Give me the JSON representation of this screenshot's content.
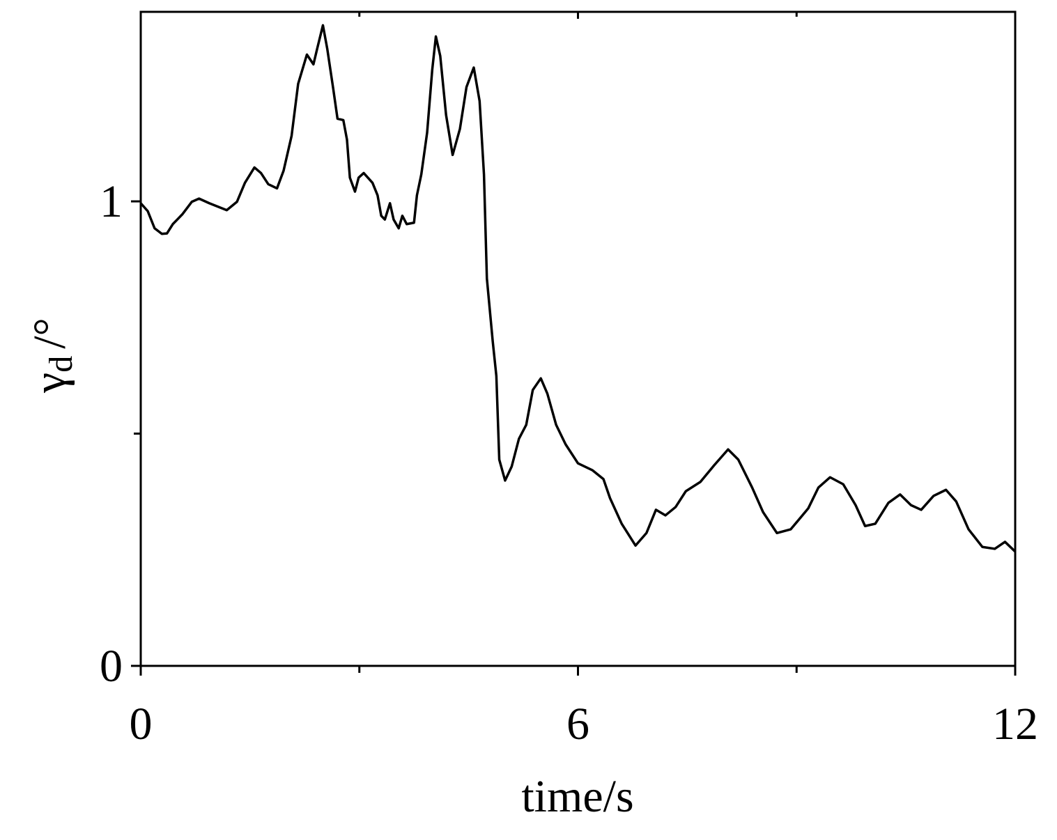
{
  "chart_data": {
    "type": "line",
    "xlabel": "time/s",
    "ylabel": [
      "γ",
      "d",
      "/°"
    ],
    "xlim": [
      0,
      12
    ],
    "xticks": [
      0,
      6,
      12
    ],
    "xminorticks": [
      3,
      9
    ],
    "ylim": [
      0,
      1.408
    ],
    "yticks": [
      0,
      1
    ],
    "yminorticks": [
      0.5
    ],
    "grid": false,
    "series": [
      {
        "color": "#000000",
        "x": [
          0,
          0.096,
          0.19,
          0.29,
          0.36,
          0.44,
          0.57,
          0.7,
          0.8,
          0.94,
          1.18,
          1.32,
          1.43,
          1.56,
          1.65,
          1.75,
          1.87,
          1.96,
          2.07,
          2.16,
          2.28,
          2.37,
          2.42,
          2.5,
          2.56,
          2.64,
          2.7,
          2.78,
          2.83,
          2.87,
          2.94,
          2.99,
          3.06,
          3.18,
          3.25,
          3.3,
          3.35,
          3.42,
          3.47,
          3.54,
          3.59,
          3.65,
          3.75,
          3.79,
          3.85,
          3.93,
          4.0,
          4.05,
          4.11,
          4.19,
          4.28,
          4.38,
          4.47,
          4.57,
          4.65,
          4.71,
          4.75,
          4.83,
          4.88,
          4.92,
          5.0,
          5.09,
          5.19,
          5.29,
          5.38,
          5.49,
          5.58,
          5.7,
          5.83,
          6.0,
          6.2,
          6.35,
          6.44,
          6.6,
          6.79,
          6.94,
          7.07,
          7.2,
          7.34,
          7.48,
          7.68,
          7.87,
          8.06,
          8.2,
          8.39,
          8.54,
          8.73,
          8.92,
          9.16,
          9.3,
          9.46,
          9.64,
          9.81,
          9.94,
          10.08,
          10.26,
          10.42,
          10.57,
          10.71,
          10.88,
          11.05,
          11.19,
          11.36,
          11.55,
          11.72,
          11.86,
          12.0
        ],
        "values": [
          0.996,
          0.979,
          0.942,
          0.93,
          0.931,
          0.951,
          0.972,
          0.999,
          1.006,
          0.996,
          0.981,
          0.999,
          1.04,
          1.073,
          1.061,
          1.037,
          1.028,
          1.066,
          1.141,
          1.253,
          1.316,
          1.295,
          1.328,
          1.379,
          1.328,
          1.244,
          1.178,
          1.175,
          1.133,
          1.051,
          1.021,
          1.051,
          1.061,
          1.04,
          1.013,
          0.969,
          0.961,
          0.996,
          0.961,
          0.942,
          0.969,
          0.951,
          0.954,
          1.013,
          1.058,
          1.148,
          1.283,
          1.355,
          1.313,
          1.186,
          1.1,
          1.156,
          1.246,
          1.288,
          1.216,
          1.058,
          0.834,
          0.699,
          0.624,
          0.444,
          0.399,
          0.429,
          0.489,
          0.519,
          0.594,
          0.619,
          0.586,
          0.519,
          0.477,
          0.436,
          0.421,
          0.402,
          0.361,
          0.306,
          0.259,
          0.286,
          0.336,
          0.324,
          0.342,
          0.376,
          0.396,
          0.432,
          0.466,
          0.444,
          0.384,
          0.331,
          0.286,
          0.294,
          0.339,
          0.384,
          0.406,
          0.391,
          0.346,
          0.301,
          0.306,
          0.351,
          0.369,
          0.346,
          0.336,
          0.366,
          0.379,
          0.354,
          0.294,
          0.256,
          0.252,
          0.267,
          0.246
        ]
      }
    ]
  }
}
